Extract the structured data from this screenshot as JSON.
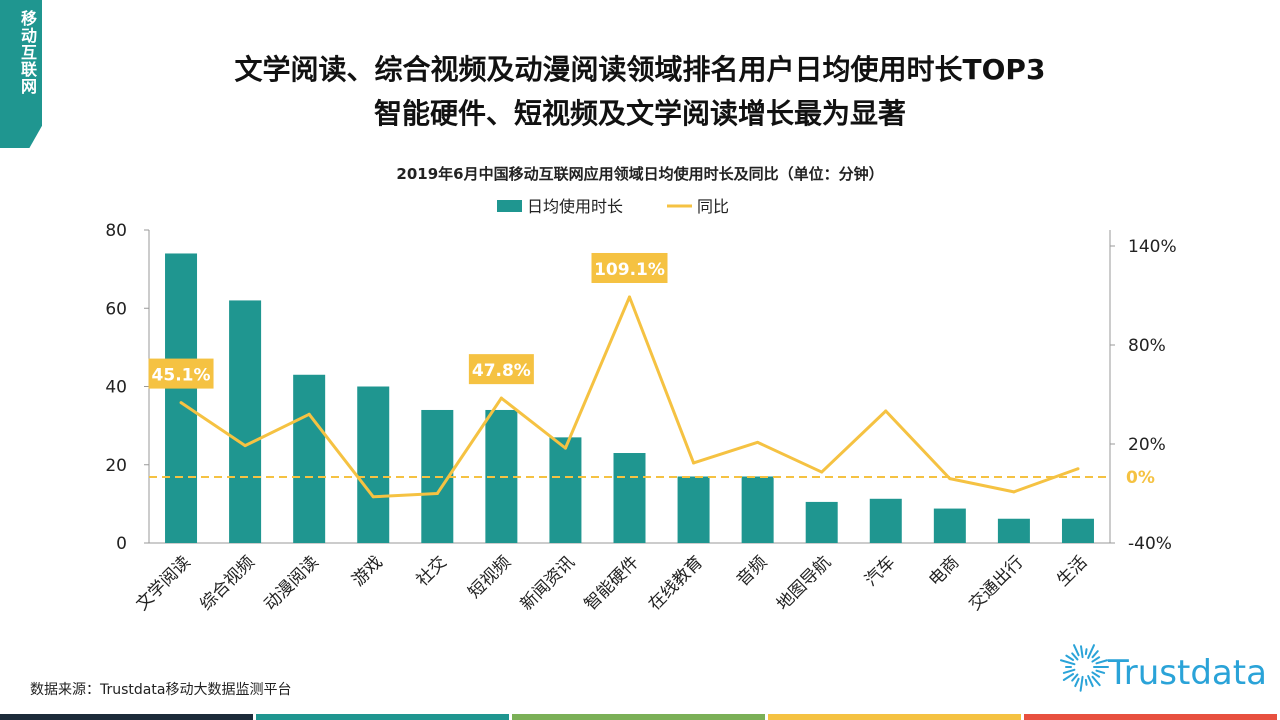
{
  "corner_tag": "移动互联网",
  "headline": [
    "文学阅读、综合视频及动漫阅读领域排名用户日均使用时长TOP3",
    "智能硬件、短视频及文学阅读增长最为显著"
  ],
  "source": "数据来源：Trustdata移动大数据监测平台",
  "logo_text": "Trustdata",
  "colors": {
    "bar": "#1f9690",
    "line": "#f5c242",
    "label_bg": "#f5c242",
    "stripes": [
      "#1d2b3a",
      "#1f9690",
      "#7bb057",
      "#f5c242",
      "#e8503f"
    ]
  },
  "chart_data": {
    "type": "bar+line",
    "title": "2019年6月中国移动互联网应用领域日均使用时长及同比（单位：分钟）",
    "legend": [
      "日均使用时长",
      "同比"
    ],
    "legend_position": "top",
    "categories": [
      "文学阅读",
      "综合视频",
      "动漫阅读",
      "游戏",
      "社交",
      "短视频",
      "新闻资讯",
      "智能硬件",
      "在线教育",
      "音频",
      "地图导航",
      "汽车",
      "电商",
      "交通出行",
      "生活"
    ],
    "series": [
      {
        "name": "日均使用时长",
        "type": "bar",
        "axis": "left",
        "values": [
          74,
          62,
          43,
          40,
          34,
          34,
          27,
          23,
          17,
          17,
          10.5,
          11.3,
          8.8,
          6.2,
          6.2
        ]
      },
      {
        "name": "同比",
        "type": "line",
        "axis": "right",
        "unit": "%",
        "values": [
          45.1,
          19,
          38,
          -12,
          -10,
          47.8,
          17.5,
          109.1,
          8.5,
          21,
          3,
          40,
          -1,
          -9,
          5
        ]
      }
    ],
    "annotations": [
      {
        "category": "文学阅读",
        "text": "45.1%"
      },
      {
        "category": "短视频",
        "text": "47.8%"
      },
      {
        "category": "智能硬件",
        "text": "109.1%"
      }
    ],
    "reference_line": {
      "value": 0,
      "label": "0%",
      "style": "dashed"
    },
    "ylim_left": [
      0,
      80
    ],
    "yticks_left": [
      "0",
      "20",
      "40",
      "60",
      "80"
    ],
    "ylim_right": [
      -40,
      140
    ],
    "yticks_right": [
      "-40%",
      "20%",
      "80%",
      "140%"
    ],
    "grid": false
  }
}
